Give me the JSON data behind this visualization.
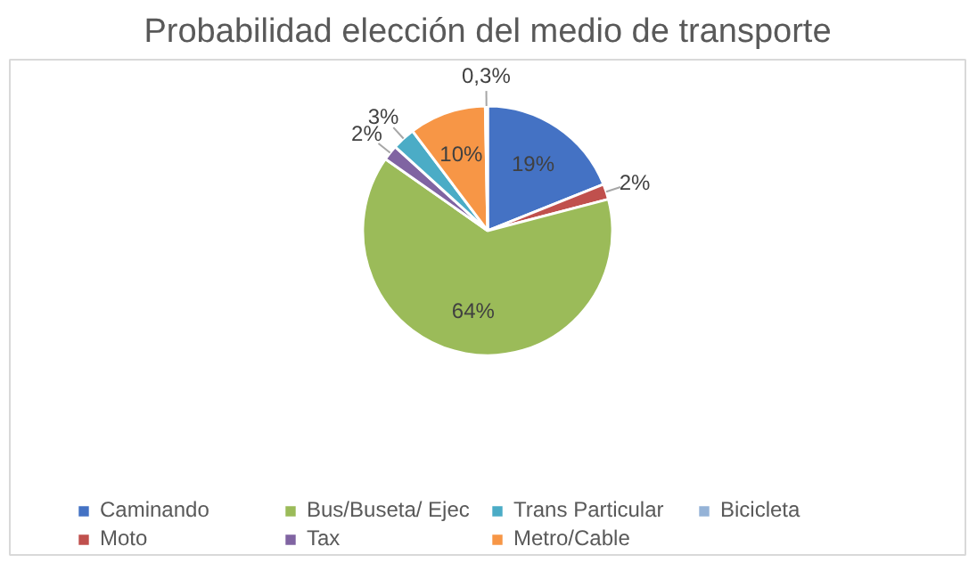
{
  "chart_data": {
    "type": "pie",
    "title": "Probabilidad elección del medio de transporte",
    "categories": [
      "Caminando",
      "Moto",
      "Bus/Buseta/ Ejec",
      "Tax",
      "Trans Particular",
      "Metro/Cable",
      "Bicicleta"
    ],
    "values": [
      19,
      2,
      64,
      2,
      3,
      10,
      0.3
    ],
    "colors": [
      "#4472c4",
      "#c0504d",
      "#9bbb59",
      "#8064a2",
      "#4bacc6",
      "#f79646",
      "#95b3d7"
    ],
    "value_labels": [
      "19%",
      "2%",
      "64%",
      "2%",
      "3%",
      "10%",
      "0,3%"
    ],
    "legend": "bottom"
  }
}
